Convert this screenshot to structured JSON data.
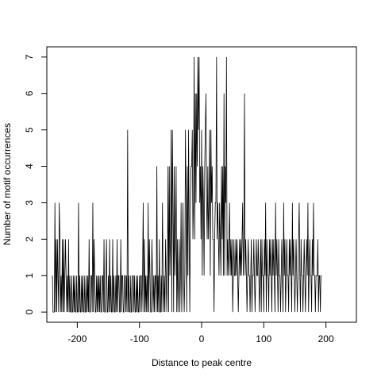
{
  "chart_data": {
    "type": "line",
    "title": "",
    "xlabel": "Distance to peak centre",
    "ylabel": "Number of motif occurrences",
    "xlim": [
      -249,
      249
    ],
    "ylim": [
      -0.28,
      7.28
    ],
    "x_ticks": [
      -200,
      -100,
      0,
      100,
      200
    ],
    "y_ticks": [
      0,
      1,
      2,
      3,
      4,
      5,
      6,
      7
    ],
    "x_tick_labels": [
      "-200",
      "-100",
      "0",
      "100",
      "200"
    ],
    "y_tick_labels": [
      "0",
      "1",
      "2",
      "3",
      "4",
      "5",
      "6",
      "7"
    ],
    "grid": false,
    "legend": "none",
    "color": "#000000",
    "x_start": -240,
    "values": [
      1,
      0,
      0,
      0,
      3,
      0,
      2,
      0,
      2,
      1,
      0,
      3,
      2,
      0,
      1,
      0,
      2,
      0,
      2,
      0,
      1,
      2,
      1,
      0,
      1,
      0,
      2,
      0,
      1,
      0,
      0,
      1,
      0,
      0,
      1,
      0,
      1,
      0,
      0,
      1,
      0,
      0,
      3,
      0,
      1,
      0,
      0,
      1,
      0,
      1,
      0,
      0,
      1,
      0,
      0,
      1,
      0,
      1,
      0,
      2,
      0,
      0,
      1,
      1,
      0,
      3,
      0,
      2,
      1,
      0,
      0,
      1,
      0,
      1,
      0,
      1,
      0,
      1,
      0,
      0,
      1,
      1,
      0,
      2,
      0,
      0,
      1,
      2,
      0,
      0,
      1,
      0,
      2,
      0,
      1,
      0,
      0,
      2,
      0,
      1,
      0,
      0,
      1,
      0,
      2,
      0,
      1,
      1,
      0,
      0,
      2,
      0,
      1,
      1,
      0,
      0,
      1,
      1,
      0,
      1,
      0,
      5,
      0,
      1,
      0,
      0,
      1,
      0,
      0,
      1,
      1,
      0,
      1,
      0,
      0,
      1,
      0,
      1,
      0,
      0,
      1,
      0,
      1,
      1,
      0,
      1,
      3,
      0,
      2,
      0,
      1,
      0,
      1,
      0,
      3,
      0,
      2,
      1,
      0,
      0,
      2,
      1,
      0,
      1,
      0,
      1,
      1,
      0,
      4,
      0,
      1,
      0,
      2,
      0,
      0,
      1,
      0,
      3,
      1,
      0,
      1,
      0,
      2,
      1,
      0,
      1,
      4,
      0,
      4,
      1,
      2,
      5,
      0,
      5,
      3,
      0,
      4,
      1,
      2,
      4,
      0,
      2,
      0,
      1,
      2,
      0,
      1,
      3,
      0,
      1,
      3,
      1,
      0,
      1,
      5,
      3,
      0,
      4,
      1,
      5,
      2,
      0,
      3,
      4,
      4,
      5,
      2,
      3,
      7,
      2,
      6,
      3,
      6,
      4,
      7,
      5,
      7,
      3,
      4,
      2,
      5,
      1,
      4,
      3,
      1,
      4,
      5,
      6,
      3,
      2,
      4,
      2,
      3,
      5,
      1,
      5,
      3,
      4,
      2,
      2,
      0,
      2,
      3,
      3,
      7,
      2,
      3,
      2,
      1,
      3,
      2,
      1,
      4,
      2,
      4,
      1,
      6,
      1,
      4,
      3,
      7,
      1,
      2,
      1,
      2,
      3,
      1,
      2,
      1,
      2,
      0,
      1,
      2,
      1,
      1,
      2,
      1,
      2,
      1,
      0,
      1,
      2,
      1,
      2,
      1,
      2,
      3,
      1,
      2,
      6,
      1,
      2,
      1,
      0,
      1,
      2,
      1,
      1,
      0,
      1,
      2,
      0,
      1,
      1,
      2,
      1,
      0,
      1,
      2,
      1,
      1,
      2,
      1,
      0,
      1,
      2,
      0,
      2,
      1,
      1,
      0,
      2,
      1,
      3,
      0,
      2,
      1,
      1,
      0,
      2,
      1,
      2,
      1,
      0,
      2,
      1,
      2,
      1,
      0,
      3,
      1,
      2,
      1,
      0,
      2,
      1,
      1,
      0,
      1,
      2,
      1,
      0,
      3,
      1,
      2,
      0,
      1,
      2,
      1,
      1,
      0,
      2,
      1,
      2,
      1,
      0,
      3,
      1,
      2,
      1,
      0,
      1,
      2,
      1,
      0,
      1,
      2,
      3,
      1,
      0,
      2,
      1,
      1,
      0,
      1,
      2,
      1,
      0,
      1,
      2,
      1,
      3,
      0,
      1,
      2,
      1,
      1,
      0,
      2,
      1,
      3,
      1,
      1,
      0,
      1,
      1,
      1,
      2,
      0,
      1,
      1,
      0,
      1,
      1
    ]
  }
}
